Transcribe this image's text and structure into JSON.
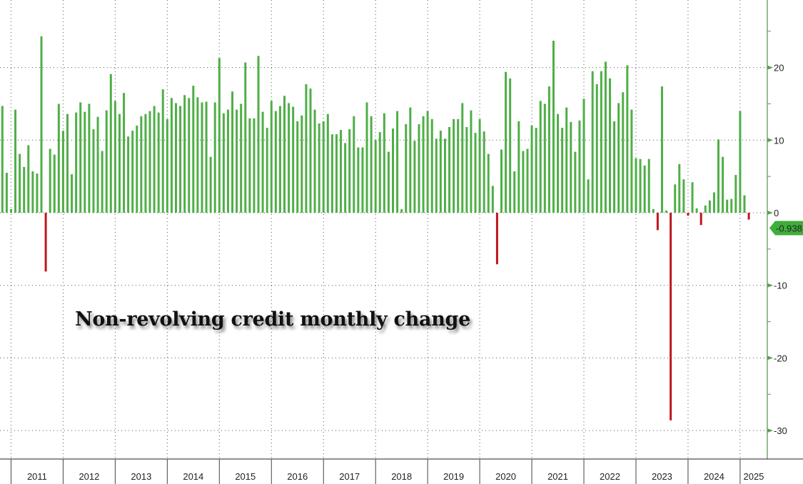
{
  "chart_data": {
    "type": "bar",
    "title": "Non-revolving credit monthly change",
    "xlabel": "",
    "ylabel": "",
    "ylim": [
      -34,
      29
    ],
    "y_ticks": [
      "20",
      "10",
      "0",
      "-10",
      "-20",
      "-30"
    ],
    "y_tick_values": [
      20,
      10,
      0,
      -10,
      -20,
      -30
    ],
    "year_labels": [
      "2011",
      "2012",
      "2013",
      "2014",
      "2015",
      "2016",
      "2017",
      "2018",
      "2019",
      "2020",
      "2021",
      "2022",
      "2023",
      "2024",
      "2025"
    ],
    "grid": true,
    "axis_side": "right",
    "last_value_label": "-0.938",
    "colors": {
      "positive": "#4fae47",
      "negative": "#c0161d",
      "axis": "#5a9e52",
      "badge": "#3fae3a"
    },
    "x": [
      "2010-11",
      "2010-12",
      "2011-01",
      "2011-02",
      "2011-03",
      "2011-04",
      "2011-05",
      "2011-06",
      "2011-07",
      "2011-08",
      "2011-09",
      "2011-10",
      "2011-11",
      "2011-12",
      "2012-01",
      "2012-02",
      "2012-03",
      "2012-04",
      "2012-05",
      "2012-06",
      "2012-07",
      "2012-08",
      "2012-09",
      "2012-10",
      "2012-11",
      "2012-12",
      "2013-01",
      "2013-02",
      "2013-03",
      "2013-04",
      "2013-05",
      "2013-06",
      "2013-07",
      "2013-08",
      "2013-09",
      "2013-10",
      "2013-11",
      "2013-12",
      "2014-01",
      "2014-02",
      "2014-03",
      "2014-04",
      "2014-05",
      "2014-06",
      "2014-07",
      "2014-08",
      "2014-09",
      "2014-10",
      "2014-11",
      "2014-12",
      "2015-01",
      "2015-02",
      "2015-03",
      "2015-04",
      "2015-05",
      "2015-06",
      "2015-07",
      "2015-08",
      "2015-09",
      "2015-10",
      "2015-11",
      "2015-12",
      "2016-01",
      "2016-02",
      "2016-03",
      "2016-04",
      "2016-05",
      "2016-06",
      "2016-07",
      "2016-08",
      "2016-09",
      "2016-10",
      "2016-11",
      "2016-12",
      "2017-01",
      "2017-02",
      "2017-03",
      "2017-04",
      "2017-05",
      "2017-06",
      "2017-07",
      "2017-08",
      "2017-09",
      "2017-10",
      "2017-11",
      "2017-12",
      "2018-01",
      "2018-02",
      "2018-03",
      "2018-04",
      "2018-05",
      "2018-06",
      "2018-07",
      "2018-08",
      "2018-09",
      "2018-10",
      "2018-11",
      "2018-12",
      "2019-01",
      "2019-02",
      "2019-03",
      "2019-04",
      "2019-05",
      "2019-06",
      "2019-07",
      "2019-08",
      "2019-09",
      "2019-10",
      "2019-11",
      "2019-12",
      "2020-01",
      "2020-02",
      "2020-03",
      "2020-04",
      "2020-05",
      "2020-06",
      "2020-07",
      "2020-08",
      "2020-09",
      "2020-10",
      "2020-11",
      "2020-12",
      "2021-01",
      "2021-02",
      "2021-03",
      "2021-04",
      "2021-05",
      "2021-06",
      "2021-07",
      "2021-08",
      "2021-09",
      "2021-10",
      "2021-11",
      "2021-12",
      "2022-01",
      "2022-02",
      "2022-03",
      "2022-04",
      "2022-05",
      "2022-06",
      "2022-07",
      "2022-08",
      "2022-09",
      "2022-10",
      "2022-11",
      "2022-12",
      "2023-01",
      "2023-02",
      "2023-03",
      "2023-04",
      "2023-05",
      "2023-06",
      "2023-07",
      "2023-08",
      "2023-09",
      "2023-10",
      "2023-11",
      "2023-12",
      "2024-01",
      "2024-02",
      "2024-03",
      "2024-04",
      "2024-05",
      "2024-06",
      "2024-07",
      "2024-08",
      "2024-09",
      "2024-10",
      "2024-11",
      "2024-12",
      "2025-01",
      "2025-02",
      "2025-03"
    ],
    "values": [
      14.7,
      5.5,
      0.5,
      14.2,
      8.1,
      6.3,
      9.3,
      5.7,
      5.4,
      24.3,
      -8.1,
      8.8,
      8.0,
      15.0,
      11.3,
      13.6,
      5.3,
      13.8,
      15.2,
      13.9,
      15.0,
      11.5,
      13.2,
      8.5,
      14.1,
      19.1,
      15.4,
      13.6,
      16.5,
      10.5,
      11.3,
      12.0,
      13.3,
      13.6,
      14.0,
      14.7,
      13.8,
      17.0,
      12.9,
      15.8,
      15.1,
      14.7,
      16.2,
      15.8,
      17.5,
      15.9,
      15.2,
      15.3,
      7.7,
      15.2,
      21.3,
      13.7,
      14.2,
      16.7,
      14.2,
      15.0,
      20.7,
      13.0,
      13.0,
      21.6,
      13.9,
      11.7,
      15.4,
      14.0,
      14.7,
      16.1,
      15.1,
      14.6,
      12.6,
      13.4,
      17.7,
      17.1,
      14.2,
      12.3,
      12.6,
      13.6,
      10.8,
      10.8,
      11.4,
      9.6,
      11.5,
      13.3,
      9.0,
      9.0,
      15.2,
      13.3,
      10.0,
      11.1,
      13.7,
      8.4,
      11.6,
      14.0,
      0.5,
      12.2,
      14.5,
      9.9,
      12.2,
      13.3,
      14.0,
      12.9,
      10.2,
      11.3,
      10.2,
      11.8,
      12.9,
      12.9,
      15.1,
      11.8,
      14.1,
      11.0,
      12.9,
      11.2,
      8.1,
      3.7,
      -7.1,
      8.7,
      19.4,
      18.5,
      5.7,
      12.6,
      8.5,
      8.8,
      12.0,
      11.7,
      15.4,
      15.0,
      17.4,
      23.7,
      13.6,
      11.7,
      14.5,
      12.5,
      8.4,
      12.7,
      15.7,
      4.6,
      19.5,
      17.7,
      19.5,
      20.8,
      18.5,
      12.6,
      15.1,
      16.6,
      20.3,
      14.2,
      7.5,
      7.4,
      6.5,
      7.4,
      0.5,
      -2.4,
      17.4,
      0.3,
      -28.6,
      3.9,
      6.7,
      4.6,
      -0.4,
      4.2,
      0.6,
      -1.7,
      1.0,
      1.7,
      2.8,
      10.1,
      7.7,
      1.8,
      1.9,
      5.2,
      14.0,
      2.4,
      -0.938
    ]
  }
}
